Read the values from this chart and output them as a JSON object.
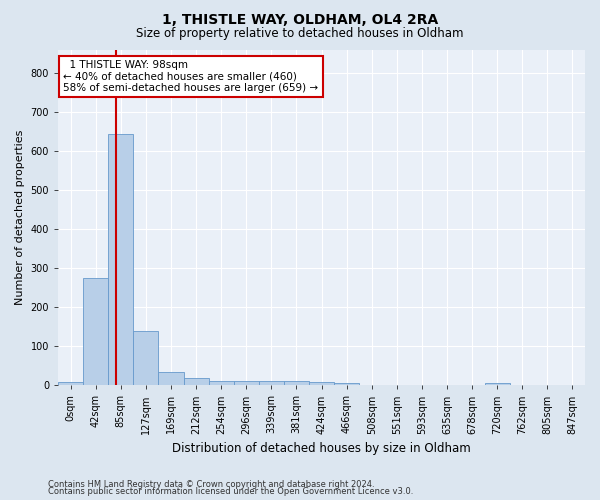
{
  "title1": "1, THISTLE WAY, OLDHAM, OL4 2RA",
  "title2": "Size of property relative to detached houses in Oldham",
  "xlabel": "Distribution of detached houses by size in Oldham",
  "ylabel": "Number of detached properties",
  "bin_labels": [
    "0sqm",
    "42sqm",
    "85sqm",
    "127sqm",
    "169sqm",
    "212sqm",
    "254sqm",
    "296sqm",
    "339sqm",
    "381sqm",
    "424sqm",
    "466sqm",
    "508sqm",
    "551sqm",
    "593sqm",
    "635sqm",
    "678sqm",
    "720sqm",
    "762sqm",
    "805sqm",
    "847sqm"
  ],
  "bar_heights": [
    8,
    275,
    645,
    140,
    35,
    18,
    12,
    10,
    10,
    10,
    8,
    5,
    0,
    0,
    0,
    0,
    0,
    7,
    0,
    0,
    0
  ],
  "bar_color": "#b8cfe8",
  "bar_edge_color": "#6699cc",
  "vline_color": "#cc0000",
  "annotation_text": "  1 THISTLE WAY: 98sqm  \n← 40% of detached houses are smaller (460)\n58% of semi-detached houses are larger (659) →",
  "annotation_box_color": "#ffffff",
  "annotation_box_edge_color": "#cc0000",
  "ylim": [
    0,
    860
  ],
  "yticks": [
    0,
    100,
    200,
    300,
    400,
    500,
    600,
    700,
    800
  ],
  "footer1": "Contains HM Land Registry data © Crown copyright and database right 2024.",
  "footer2": "Contains public sector information licensed under the Open Government Licence v3.0.",
  "bg_color": "#dce6f0",
  "plot_bg_color": "#eaf0f8",
  "grid_color": "#ffffff",
  "title1_fontsize": 10,
  "title2_fontsize": 8.5,
  "xlabel_fontsize": 8.5,
  "ylabel_fontsize": 8,
  "tick_fontsize": 7,
  "annotation_fontsize": 7.5,
  "footer_fontsize": 6
}
